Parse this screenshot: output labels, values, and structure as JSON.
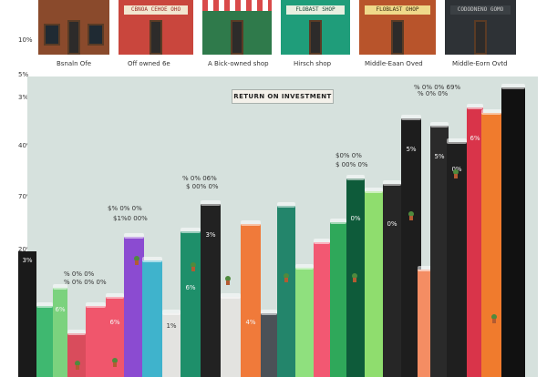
{
  "y_axis_labels": [
    "10%",
    "5%",
    "3%",
    "40%",
    "70%",
    "20%",
    "3%"
  ],
  "captions": [
    "Bsnaln Ofe",
    "Off owned 6e",
    "A Bick-owned shop",
    "Hirsch shop",
    "Middle-Eaan Oved",
    "Middle-Eorn Ovtd"
  ],
  "storefronts": [
    {
      "sign": "",
      "color": "#8a4a2c",
      "sign_color": "#6b3a22"
    },
    {
      "sign": "CBNOA CEHOE OHO",
      "color": "#c9463d",
      "sign_color": "#f2e6d0"
    },
    {
      "sign": "",
      "color": "#2f7a4b",
      "sign_color": "#2f7a4b"
    },
    {
      "sign": "FLOBAST SHOP",
      "color": "#1f9d7a",
      "sign_color": "#e8efe0"
    },
    {
      "sign": "FLOBLAST OHOP",
      "color": "#b8542b",
      "sign_color": "#efd98a"
    },
    {
      "sign": "CODODNENO GOMO",
      "color": "#2e3236",
      "sign_color": "#3b4044"
    }
  ],
  "plate_title": "RETURN ON INVESTMENT",
  "notes": [
    {
      "text": "% 0% 0% 69%",
      "key": "n1"
    },
    {
      "text": "$1%0 00%",
      "key": "n2"
    },
    {
      "text": "$ 00% 0%",
      "key": "n3"
    },
    {
      "text": "% 0% 06%",
      "key": "n4"
    },
    {
      "text": "$0% 0%",
      "key": "n5"
    },
    {
      "text": "% 0% 0% 0%",
      "key": "n6"
    },
    {
      "text": "% 0% 0%",
      "key": "n7"
    },
    {
      "text": "$% 0% 0%",
      "key": "n8"
    }
  ],
  "bars": [
    {
      "color": "#1a1a1a",
      "value": "3%"
    },
    {
      "color": "#3fb870",
      "value": ""
    },
    {
      "color": "#7bd27e",
      "value": "6%"
    },
    {
      "color": "#d94c5c",
      "value": ""
    },
    {
      "color": "#f0566c",
      "value": "6%"
    },
    {
      "color": "#8b4bd1",
      "value": ""
    },
    {
      "color": "#3fb3cc",
      "value": ""
    },
    {
      "color": "#e3e3e0",
      "value": "1%"
    },
    {
      "color": "#1e8f6a",
      "value": "6%"
    },
    {
      "color": "#222222",
      "value": "3%"
    },
    {
      "color": "#f07a3a",
      "value": "4%"
    },
    {
      "color": "#4b5157",
      "value": ""
    },
    {
      "color": "#23856b",
      "value": ""
    },
    {
      "color": "#8fe07e",
      "value": ""
    },
    {
      "color": "#f25872",
      "value": "6%"
    },
    {
      "color": "#2fa85a",
      "value": ""
    },
    {
      "color": "#0e5b3a",
      "value": "0%"
    },
    {
      "color": "#8fdd6e",
      "value": ""
    },
    {
      "color": "#262626",
      "value": "0%"
    },
    {
      "color": "#1d1d1d",
      "value": "5%"
    },
    {
      "color": "#f48d63",
      "value": ""
    },
    {
      "color": "#2a2a2a",
      "value": "5%"
    },
    {
      "color": "#1f1f1f",
      "value": "0%"
    },
    {
      "color": "#d9344a",
      "value": "6%"
    },
    {
      "color": "#f07b2d",
      "value": ""
    },
    {
      "color": "#111111",
      "value": ""
    }
  ]
}
